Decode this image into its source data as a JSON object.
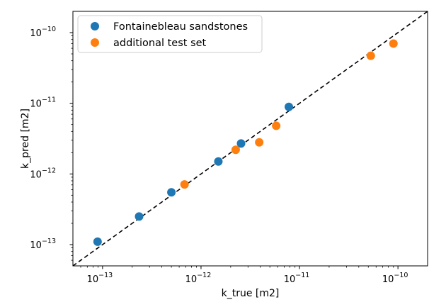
{
  "chart_data": {
    "type": "scatter",
    "title": "",
    "xlabel": "k_true [m2]",
    "ylabel": "k_pred [m2]",
    "xscale": "log",
    "yscale": "log",
    "xlim": [
      5e-14,
      2e-10
    ],
    "ylim": [
      5e-14,
      2e-10
    ],
    "grid": false,
    "legend_position": "top-left",
    "reference_line": {
      "type": "y=x",
      "style": "dashed",
      "color": "#000000"
    },
    "x_ticks": [
      {
        "value": 1e-13,
        "base": "10",
        "exp": "−13"
      },
      {
        "value": 1e-12,
        "base": "10",
        "exp": "−12"
      },
      {
        "value": 1e-11,
        "base": "10",
        "exp": "−11"
      },
      {
        "value": 1e-10,
        "base": "10",
        "exp": "−10"
      }
    ],
    "y_ticks": [
      {
        "value": 1e-13,
        "base": "10",
        "exp": "−13"
      },
      {
        "value": 1e-12,
        "base": "10",
        "exp": "−12"
      },
      {
        "value": 1e-11,
        "base": "10",
        "exp": "−11"
      },
      {
        "value": 1e-10,
        "base": "10",
        "exp": "−10"
      }
    ],
    "series": [
      {
        "name": "Fontainebleau sandstones",
        "color": "#1f77b4",
        "points": [
          {
            "x": 8.9e-14,
            "y": 1.1e-13
          },
          {
            "x": 2.35e-13,
            "y": 2.5e-13
          },
          {
            "x": 5e-13,
            "y": 5.5e-13
          },
          {
            "x": 1.5e-12,
            "y": 1.5e-12
          },
          {
            "x": 2.55e-12,
            "y": 2.7e-12
          },
          {
            "x": 7.8e-12,
            "y": 8.9e-12
          }
        ]
      },
      {
        "name": "additional test set",
        "color": "#ff7f0e",
        "points": [
          {
            "x": 6.8e-13,
            "y": 7.1e-13
          },
          {
            "x": 2.25e-12,
            "y": 2.2e-12
          },
          {
            "x": 3.9e-12,
            "y": 2.8e-12
          },
          {
            "x": 5.8e-12,
            "y": 4.8e-12
          },
          {
            "x": 5.3e-11,
            "y": 4.7e-11
          },
          {
            "x": 9e-11,
            "y": 7e-11
          }
        ]
      }
    ]
  }
}
